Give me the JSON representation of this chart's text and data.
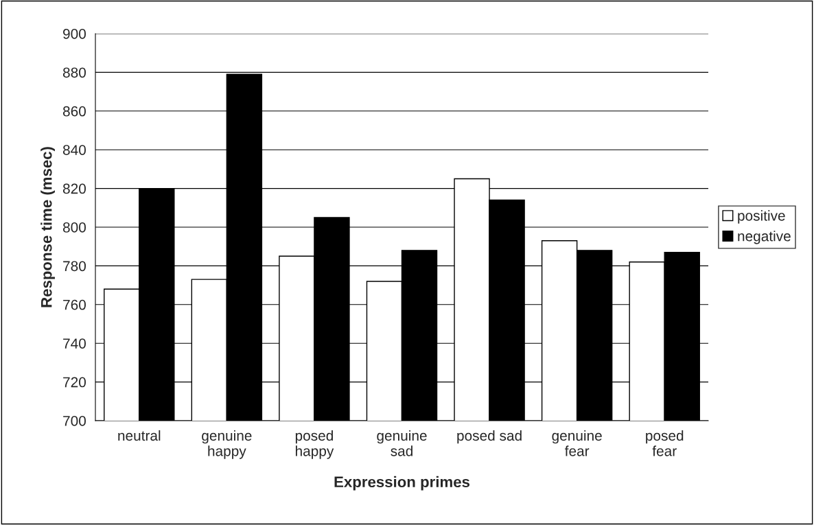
{
  "chart_data": {
    "type": "bar",
    "xlabel": "Expression primes",
    "ylabel": "Response time (msec)",
    "categories": [
      "neutral",
      "genuine\nhappy",
      "posed\nhappy",
      "genuine\nsad",
      "posed sad",
      "genuine\nfear",
      "posed\nfear"
    ],
    "series": [
      {
        "name": "positive",
        "color": "#ffffff",
        "values": [
          768,
          773,
          785,
          772,
          825,
          793,
          782
        ]
      },
      {
        "name": "negative",
        "color": "#000000",
        "values": [
          820,
          879,
          805,
          788,
          814,
          788,
          787
        ]
      }
    ],
    "ylim": [
      700,
      900
    ],
    "yticks": [
      700,
      720,
      740,
      760,
      780,
      800,
      820,
      840,
      860,
      880,
      900
    ],
    "grid": "y",
    "legend": "right"
  }
}
